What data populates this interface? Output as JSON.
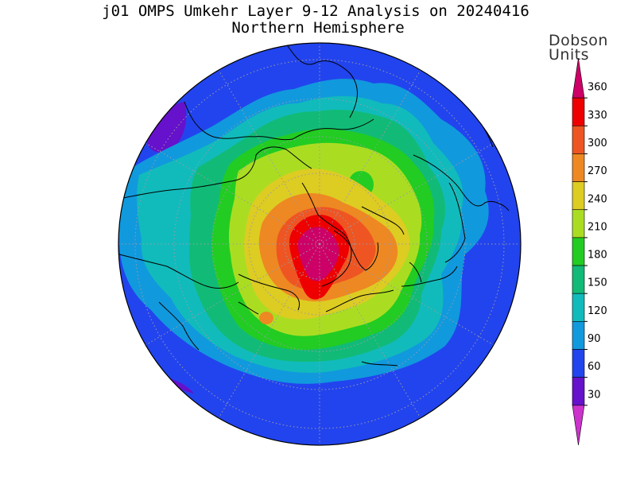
{
  "title_line1": "j01 OMPS Umkehr Layer 9-12 Analysis on 20240416",
  "title_line2": "Northern Hemisphere",
  "units_line1": "Dobson",
  "units_line2": "Units",
  "colorbar": {
    "ticks": [
      "360",
      "330",
      "300",
      "270",
      "240",
      "210",
      "180",
      "150",
      "120",
      "90",
      "60",
      "30"
    ],
    "bands": [
      "#cc0066",
      "#ee0000",
      "#ee5522",
      "#ee8822",
      "#ddcc22",
      "#aadd22",
      "#22cc22",
      "#11bb77",
      "#11bbbb",
      "#1199dd",
      "#2244ee",
      "#6611cc",
      "#cc33cc"
    ]
  },
  "map": {
    "projection": "north-polar-stereographic",
    "hemisphere": "Northern"
  }
}
